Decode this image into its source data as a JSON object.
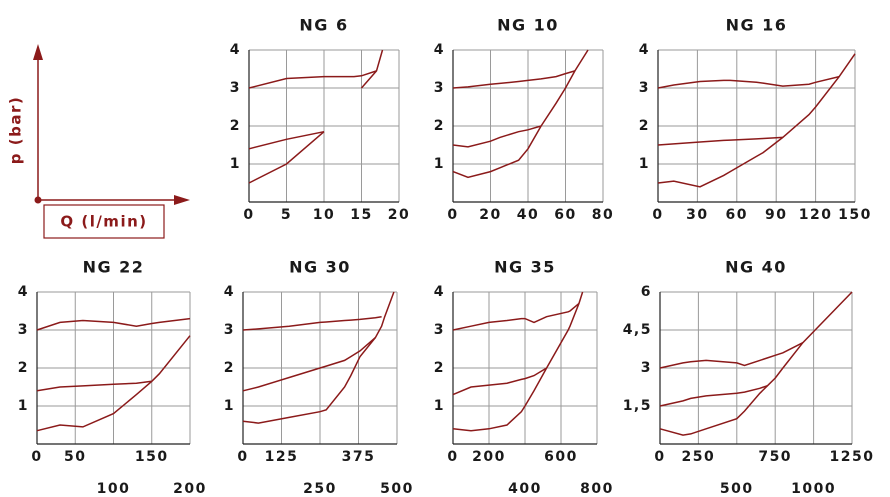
{
  "axis_legend": {
    "y_label": "p (bar)",
    "x_label": "Q (l/min)"
  },
  "chart_data": [
    {
      "type": "line",
      "title": "NG 6",
      "xlim": [
        0,
        20
      ],
      "xticks": [
        0,
        5,
        10,
        15,
        20
      ],
      "ylim": [
        0,
        4
      ],
      "yticks": [
        1,
        2,
        3,
        4
      ],
      "grid": true,
      "x": [
        0,
        5,
        10,
        14,
        15,
        17,
        17.8
      ],
      "series": [
        {
          "color": "#8b1a1a",
          "values": [
            3.0,
            3.25,
            3.3,
            3.3,
            3.32,
            3.45,
            null
          ]
        },
        {
          "color": "#8b1a1a",
          "values": [
            1.4,
            1.65,
            1.85,
            null,
            null,
            null,
            null
          ]
        },
        {
          "color": "#8b1a1a",
          "values": [
            0.5,
            1.0,
            1.85,
            null,
            3.0,
            3.45,
            4.0
          ]
        }
      ]
    },
    {
      "type": "line",
      "title": "NG 10",
      "xlim": [
        0,
        80
      ],
      "xticks": [
        0,
        20,
        40,
        60,
        80
      ],
      "ylim": [
        0,
        4
      ],
      "yticks": [
        1,
        2,
        3,
        4
      ],
      "grid": true,
      "x": [
        0,
        8,
        20,
        25,
        35,
        40,
        47,
        55,
        60,
        65,
        72
      ],
      "series": [
        {
          "color": "#8b1a1a",
          "values": [
            3.0,
            3.03,
            3.1,
            3.12,
            3.17,
            3.2,
            3.24,
            3.3,
            3.38,
            3.45,
            null
          ]
        },
        {
          "color": "#8b1a1a",
          "values": [
            1.5,
            1.45,
            1.6,
            1.7,
            1.85,
            1.9,
            2.0,
            null,
            null,
            null,
            null
          ]
        },
        {
          "color": "#8b1a1a",
          "values": [
            0.8,
            0.65,
            0.8,
            0.9,
            1.1,
            1.4,
            2.0,
            2.6,
            3.0,
            3.45,
            4.0
          ]
        }
      ]
    },
    {
      "type": "line",
      "title": "NG 16",
      "xlim": [
        0,
        150
      ],
      "xticks": [
        0,
        30,
        60,
        90,
        120,
        150
      ],
      "ylim": [
        0,
        4
      ],
      "yticks": [
        1,
        2,
        3,
        4
      ],
      "grid": true,
      "x": [
        0,
        12,
        32,
        50,
        55,
        75,
        80,
        95,
        115,
        120,
        138,
        150
      ],
      "series": [
        {
          "color": "#8b1a1a",
          "values": [
            3.0,
            3.08,
            3.17,
            3.2,
            3.2,
            3.15,
            3.13,
            3.05,
            3.1,
            3.15,
            3.3,
            null
          ]
        },
        {
          "color": "#8b1a1a",
          "values": [
            1.5,
            1.53,
            1.58,
            1.62,
            1.63,
            1.66,
            1.67,
            1.7,
            null,
            null,
            null,
            null
          ]
        },
        {
          "color": "#8b1a1a",
          "values": [
            0.5,
            0.55,
            0.4,
            0.7,
            0.8,
            1.2,
            1.3,
            1.7,
            2.3,
            2.5,
            3.3,
            3.9
          ]
        }
      ]
    },
    {
      "type": "line",
      "title": "NG 22",
      "xlim": [
        0,
        200
      ],
      "xticks": [
        0,
        50,
        100,
        150,
        200
      ],
      "ylim": [
        0,
        4
      ],
      "yticks": [
        1,
        2,
        3,
        4
      ],
      "grid": true,
      "x": [
        0,
        30,
        60,
        100,
        130,
        150,
        160,
        200
      ],
      "series": [
        {
          "color": "#8b1a1a",
          "values": [
            3.0,
            3.2,
            3.25,
            3.2,
            3.1,
            3.17,
            3.2,
            3.3
          ]
        },
        {
          "color": "#8b1a1a",
          "values": [
            1.4,
            1.5,
            1.53,
            1.57,
            1.6,
            1.65,
            null,
            null
          ]
        },
        {
          "color": "#8b1a1a",
          "values": [
            0.35,
            0.5,
            0.45,
            0.8,
            1.3,
            1.65,
            1.85,
            2.85
          ]
        }
      ]
    },
    {
      "type": "line",
      "title": "NG 30",
      "xlim": [
        0,
        500
      ],
      "xticks": [
        0,
        125,
        250,
        375,
        500
      ],
      "ylim": [
        0,
        4
      ],
      "yticks": [
        1,
        2,
        3,
        4
      ],
      "grid": true,
      "x": [
        0,
        50,
        150,
        250,
        270,
        330,
        350,
        380,
        430,
        450,
        460,
        490
      ],
      "series": [
        {
          "color": "#8b1a1a",
          "values": [
            3.0,
            3.03,
            3.1,
            3.2,
            3.21,
            3.25,
            3.26,
            3.28,
            3.32,
            3.35,
            null,
            null
          ]
        },
        {
          "color": "#8b1a1a",
          "values": [
            1.4,
            1.5,
            1.75,
            2.0,
            2.05,
            2.2,
            2.3,
            2.45,
            2.8,
            null,
            null,
            null
          ]
        },
        {
          "color": "#8b1a1a",
          "values": [
            0.6,
            0.55,
            0.7,
            0.85,
            0.9,
            1.5,
            1.8,
            2.3,
            2.8,
            3.1,
            3.35,
            4.0
          ]
        }
      ]
    },
    {
      "type": "line",
      "title": "NG 35",
      "xlim": [
        0,
        800
      ],
      "xticks": [
        0,
        200,
        400,
        600,
        800
      ],
      "ylim": [
        0,
        4
      ],
      "yticks": [
        1,
        2,
        3,
        4
      ],
      "grid": true,
      "x": [
        0,
        100,
        200,
        300,
        380,
        400,
        450,
        520,
        640,
        650,
        700,
        720
      ],
      "series": [
        {
          "color": "#8b1a1a",
          "values": [
            3.0,
            3.1,
            3.2,
            3.25,
            3.3,
            3.3,
            3.2,
            3.35,
            3.48,
            3.5,
            3.7,
            null
          ]
        },
        {
          "color": "#8b1a1a",
          "values": [
            1.3,
            1.5,
            1.55,
            1.6,
            1.7,
            1.72,
            1.8,
            2.0,
            null,
            null,
            null,
            null
          ]
        },
        {
          "color": "#8b1a1a",
          "values": [
            0.4,
            0.35,
            0.4,
            0.5,
            0.85,
            1.0,
            1.4,
            2.0,
            3.0,
            3.1,
            3.7,
            4.0
          ]
        }
      ]
    },
    {
      "type": "line",
      "title": "NG 40",
      "xlim": [
        0,
        1250
      ],
      "xticks": [
        0,
        250,
        500,
        750,
        1000,
        1250
      ],
      "ylim": [
        0,
        6
      ],
      "yticks": [
        {
          "value": 1.5,
          "label": "1,5"
        },
        3,
        {
          "value": 4.5,
          "label": "4,5"
        },
        6
      ],
      "grid": true,
      "x": [
        0,
        150,
        200,
        300,
        500,
        550,
        650,
        700,
        750,
        800,
        930,
        1250
      ],
      "series": [
        {
          "color": "#8b1a1a",
          "values": [
            3.0,
            3.2,
            3.25,
            3.3,
            3.2,
            3.1,
            3.3,
            3.4,
            3.5,
            3.6,
            4.0,
            null
          ]
        },
        {
          "color": "#8b1a1a",
          "values": [
            1.5,
            1.7,
            1.8,
            1.9,
            2.0,
            2.05,
            2.2,
            2.3,
            null,
            null,
            null,
            null
          ]
        },
        {
          "color": "#8b1a1a",
          "values": [
            0.6,
            0.35,
            0.4,
            0.6,
            1.0,
            1.3,
            2.0,
            2.3,
            2.6,
            3.0,
            4.0,
            6.0
          ]
        }
      ]
    }
  ]
}
